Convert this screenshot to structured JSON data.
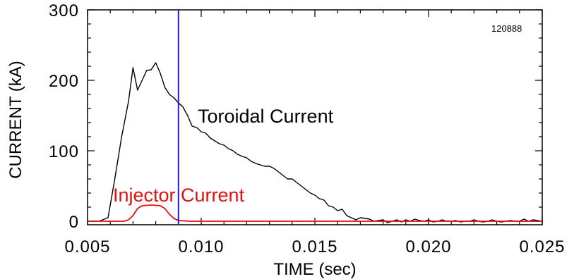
{
  "chart_data": {
    "type": "line",
    "xlabel": "TIME (sec)",
    "ylabel": "CURRENT (kA)",
    "xlim": [
      0.005,
      0.025
    ],
    "ylim": [
      -5,
      300
    ],
    "x_ticks": [
      0.005,
      0.01,
      0.015,
      0.02,
      0.025
    ],
    "x_tick_labels": [
      "0.005",
      "0.010",
      "0.015",
      "0.020",
      "0.025"
    ],
    "y_ticks": [
      0,
      100,
      200,
      300
    ],
    "y_tick_labels": [
      "0",
      "100",
      "200",
      "300"
    ],
    "grid": false,
    "annotations": {
      "shot_number": "120888",
      "toroidal_label": "Toroidal Current",
      "injector_label": "Injector Current"
    },
    "vertical_marker": {
      "x": 0.009,
      "color": "#1f1fd6"
    },
    "series": [
      {
        "name": "Toroidal Current",
        "color": "#000000",
        "x": [
          0.005,
          0.0055,
          0.0059,
          0.0062,
          0.0065,
          0.0068,
          0.007,
          0.0072,
          0.0074,
          0.0076,
          0.0078,
          0.008,
          0.0082,
          0.0084,
          0.0086,
          0.0088,
          0.009,
          0.0092,
          0.0094,
          0.0096,
          0.0098,
          0.01,
          0.0102,
          0.0104,
          0.0106,
          0.0108,
          0.011,
          0.0112,
          0.0114,
          0.0116,
          0.0118,
          0.012,
          0.0122,
          0.0124,
          0.0126,
          0.0128,
          0.013,
          0.0132,
          0.0134,
          0.0136,
          0.0138,
          0.014,
          0.0142,
          0.0144,
          0.0146,
          0.0148,
          0.015,
          0.0152,
          0.0154,
          0.0156,
          0.0158,
          0.016,
          0.0162,
          0.0164,
          0.0166,
          0.0168,
          0.017,
          0.0172,
          0.0174,
          0.0176,
          0.0178,
          0.018,
          0.0182,
          0.0184,
          0.0186,
          0.0188,
          0.019,
          0.0192,
          0.0194,
          0.0196,
          0.0198,
          0.02,
          0.0202,
          0.0204,
          0.0206,
          0.0208,
          0.021,
          0.0212,
          0.0214,
          0.0216,
          0.0218,
          0.022,
          0.0222,
          0.0224,
          0.0226,
          0.0228,
          0.023,
          0.0232,
          0.0234,
          0.0236,
          0.0238,
          0.024,
          0.0242,
          0.0244,
          0.0246,
          0.0248,
          0.025
        ],
        "y": [
          0,
          0,
          5,
          60,
          120,
          170,
          218,
          186,
          200,
          214,
          215,
          225,
          210,
          190,
          180,
          175,
          168,
          162,
          150,
          135,
          133,
          127,
          125,
          118,
          114,
          110,
          108,
          103,
          100,
          95,
          92,
          90,
          85,
          82,
          80,
          78,
          78,
          75,
          70,
          65,
          60,
          60,
          55,
          50,
          45,
          40,
          37,
          32,
          30,
          22,
          20,
          15,
          17,
          8,
          5,
          2,
          5,
          4,
          3,
          0,
          1,
          2,
          -2,
          0,
          2,
          -1,
          2,
          0,
          3,
          1,
          0,
          2,
          -1,
          0,
          2,
          0,
          0,
          1,
          -1,
          0,
          0,
          2,
          0,
          -1,
          0,
          2,
          0,
          -1,
          0,
          1,
          0,
          0,
          3,
          0,
          2,
          1,
          0
        ],
        "y_note": "kA"
      },
      {
        "name": "Injector Current",
        "color": "#e01010",
        "x": [
          0.005,
          0.006,
          0.0066,
          0.0068,
          0.007,
          0.0072,
          0.0074,
          0.0078,
          0.0082,
          0.0084,
          0.0086,
          0.0088,
          0.009,
          0.0095,
          0.01,
          0.012,
          0.015,
          0.02,
          0.025
        ],
        "y": [
          0,
          0,
          0,
          2,
          8,
          18,
          22,
          23,
          22,
          18,
          10,
          4,
          1,
          0,
          0,
          0,
          0,
          0,
          0
        ]
      }
    ]
  }
}
